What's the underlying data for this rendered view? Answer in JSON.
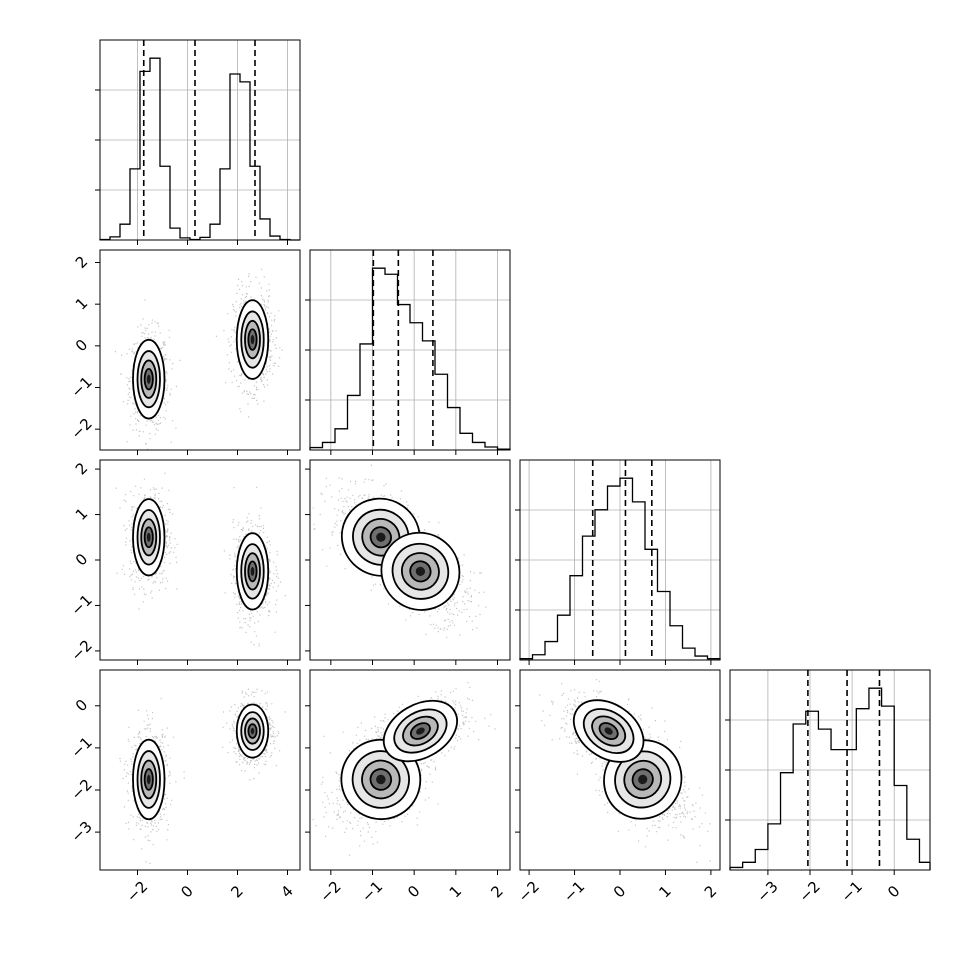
{
  "chart_data": {
    "type": "corner",
    "n_params": 4,
    "colors": {
      "line": "#000000",
      "grid": "#b0b0b0",
      "scatter": "#555555",
      "background": "#ffffff"
    },
    "ranges": [
      [
        -3.5,
        4.5
      ],
      [
        -2.5,
        2.3
      ],
      [
        -2.2,
        2.2
      ],
      [
        -3.9,
        0.85
      ]
    ],
    "ticks": [
      [
        -2,
        0,
        2,
        4
      ],
      [
        -2,
        -1,
        0,
        1,
        2
      ],
      [
        -2,
        -1,
        0,
        1,
        2
      ],
      [
        -3,
        -2,
        -1,
        0
      ]
    ],
    "tick_labels": [
      [
        "−2",
        "0",
        "2",
        "4"
      ],
      [
        "−2",
        "−1",
        "0",
        "1",
        "2"
      ],
      [
        "−2",
        "−1",
        "0",
        "1",
        "2"
      ],
      [
        "−3",
        "−2",
        "−1",
        "0"
      ]
    ],
    "histograms": [
      {
        "param": 0,
        "bins": [
          -3.5,
          -3.1,
          -2.7,
          -2.3,
          -1.9,
          -1.5,
          -1.1,
          -0.7,
          -0.3,
          0.1,
          0.5,
          0.9,
          1.3,
          1.7,
          2.1,
          2.5,
          2.9,
          3.3,
          3.7,
          4.1,
          4.5
        ],
        "counts": [
          2,
          12,
          60,
          270,
          640,
          690,
          280,
          45,
          8,
          2,
          10,
          60,
          270,
          630,
          600,
          280,
          80,
          15,
          2,
          0
        ],
        "quantiles": [
          -1.75,
          0.3,
          2.7
        ]
      },
      {
        "param": 1,
        "bins": [
          -2.5,
          -2.2,
          -1.9,
          -1.6,
          -1.3,
          -1.0,
          -0.7,
          -0.4,
          -0.1,
          0.2,
          0.5,
          0.8,
          1.1,
          1.4,
          1.7,
          2.0,
          2.3
        ],
        "counts": [
          8,
          25,
          70,
          180,
          350,
          600,
          580,
          480,
          420,
          360,
          250,
          140,
          55,
          25,
          10,
          3
        ],
        "quantiles": [
          -0.98,
          -0.38,
          0.45
        ]
      },
      {
        "param": 2,
        "bins": [
          -2.2,
          -1.925,
          -1.65,
          -1.375,
          -1.1,
          -0.825,
          -0.55,
          -0.275,
          0.0,
          0.275,
          0.55,
          0.825,
          1.1,
          1.375,
          1.65,
          1.925,
          2.2
        ],
        "counts": [
          5,
          20,
          70,
          170,
          320,
          470,
          570,
          660,
          690,
          600,
          420,
          260,
          130,
          45,
          15,
          5
        ],
        "quantiles": [
          -0.6,
          0.12,
          0.7
        ]
      },
      {
        "param": 3,
        "bins": [
          -3.9,
          -3.6,
          -3.3,
          -3.0,
          -2.7,
          -2.4,
          -2.1,
          -1.8,
          -1.5,
          -1.2,
          -0.9,
          -0.6,
          -0.3,
          0.0,
          0.3,
          0.6,
          0.85
        ],
        "counts": [
          10,
          30,
          80,
          180,
          380,
          570,
          620,
          550,
          470,
          470,
          630,
          710,
          640,
          330,
          120,
          30
        ],
        "quantiles": [
          -2.05,
          -1.12,
          -0.35
        ]
      }
    ],
    "clusters": [
      {
        "mean": [
          -1.55,
          -0.8,
          0.5,
          -1.75
        ],
        "std": [
          0.3,
          0.45,
          0.4,
          0.45
        ],
        "weight": 0.5
      },
      {
        "mean": [
          2.6,
          0.15,
          -0.25,
          -0.6
        ],
        "std": [
          0.3,
          0.45,
          0.4,
          0.3
        ],
        "weight": 0.5
      }
    ]
  }
}
